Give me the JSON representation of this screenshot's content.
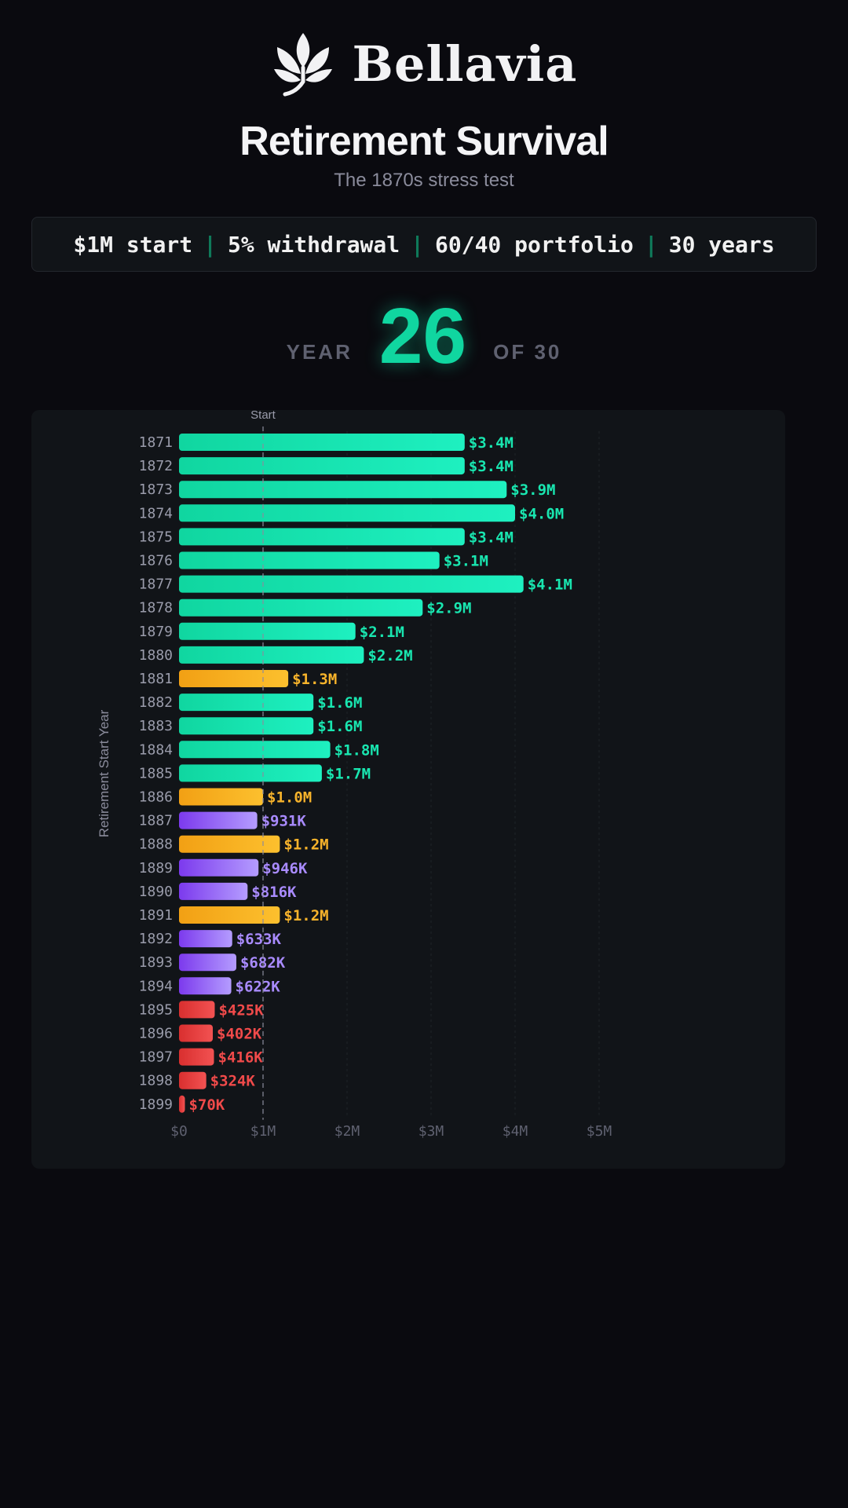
{
  "brand": {
    "name": "Bellavia",
    "logo_icon": "leaf-logo-icon"
  },
  "header": {
    "title": "Retirement Survival",
    "subtitle": "The 1870s stress test"
  },
  "params": [
    "$1M start",
    "5% withdrawal",
    "60/40 portfolio",
    "30 years"
  ],
  "counter": {
    "prefix": "YEAR",
    "value": "26",
    "suffix": "OF 30"
  },
  "colors": {
    "background": "#0a0a0f",
    "panel": "#111418",
    "accent": "#10d6a0",
    "status_green": "#10d6a0",
    "status_amber": "#f5a623",
    "status_purple": "#8b5cf6",
    "status_red": "#e53e3e"
  },
  "chart_data": {
    "type": "bar",
    "orientation": "horizontal",
    "ylabel": "Retirement Start Year",
    "xlabel": "",
    "start_marker_label": "Start",
    "start_marker_value": 1.0,
    "xlim": [
      0,
      5
    ],
    "x_unit": "millions USD",
    "x_ticks": [
      {
        "value": 0,
        "label": "$0"
      },
      {
        "value": 1,
        "label": "$1M"
      },
      {
        "value": 2,
        "label": "$2M"
      },
      {
        "value": 3,
        "label": "$3M"
      },
      {
        "value": 4,
        "label": "$4M"
      },
      {
        "value": 5,
        "label": "$5M"
      }
    ],
    "grid": true,
    "bars": [
      {
        "category": "1871",
        "value": 3.4,
        "label": "$3.4M",
        "status": "green"
      },
      {
        "category": "1872",
        "value": 3.4,
        "label": "$3.4M",
        "status": "green"
      },
      {
        "category": "1873",
        "value": 3.9,
        "label": "$3.9M",
        "status": "green"
      },
      {
        "category": "1874",
        "value": 4.0,
        "label": "$4.0M",
        "status": "green"
      },
      {
        "category": "1875",
        "value": 3.4,
        "label": "$3.4M",
        "status": "green"
      },
      {
        "category": "1876",
        "value": 3.1,
        "label": "$3.1M",
        "status": "green"
      },
      {
        "category": "1877",
        "value": 4.1,
        "label": "$4.1M",
        "status": "green"
      },
      {
        "category": "1878",
        "value": 2.9,
        "label": "$2.9M",
        "status": "green"
      },
      {
        "category": "1879",
        "value": 2.1,
        "label": "$2.1M",
        "status": "green"
      },
      {
        "category": "1880",
        "value": 2.2,
        "label": "$2.2M",
        "status": "green"
      },
      {
        "category": "1881",
        "value": 1.3,
        "label": "$1.3M",
        "status": "amber"
      },
      {
        "category": "1882",
        "value": 1.6,
        "label": "$1.6M",
        "status": "green"
      },
      {
        "category": "1883",
        "value": 1.6,
        "label": "$1.6M",
        "status": "green"
      },
      {
        "category": "1884",
        "value": 1.8,
        "label": "$1.8M",
        "status": "green"
      },
      {
        "category": "1885",
        "value": 1.7,
        "label": "$1.7M",
        "status": "green"
      },
      {
        "category": "1886",
        "value": 1.0,
        "label": "$1.0M",
        "status": "amber"
      },
      {
        "category": "1887",
        "value": 0.931,
        "label": "$931K",
        "status": "purple"
      },
      {
        "category": "1888",
        "value": 1.2,
        "label": "$1.2M",
        "status": "amber"
      },
      {
        "category": "1889",
        "value": 0.946,
        "label": "$946K",
        "status": "purple"
      },
      {
        "category": "1890",
        "value": 0.816,
        "label": "$816K",
        "status": "purple"
      },
      {
        "category": "1891",
        "value": 1.2,
        "label": "$1.2M",
        "status": "amber"
      },
      {
        "category": "1892",
        "value": 0.633,
        "label": "$633K",
        "status": "purple"
      },
      {
        "category": "1893",
        "value": 0.682,
        "label": "$682K",
        "status": "purple"
      },
      {
        "category": "1894",
        "value": 0.622,
        "label": "$622K",
        "status": "purple"
      },
      {
        "category": "1895",
        "value": 0.425,
        "label": "$425K",
        "status": "red"
      },
      {
        "category": "1896",
        "value": 0.402,
        "label": "$402K",
        "status": "red"
      },
      {
        "category": "1897",
        "value": 0.416,
        "label": "$416K",
        "status": "red"
      },
      {
        "category": "1898",
        "value": 0.324,
        "label": "$324K",
        "status": "red"
      },
      {
        "category": "1899",
        "value": 0.07,
        "label": "$70K",
        "status": "red"
      }
    ]
  }
}
